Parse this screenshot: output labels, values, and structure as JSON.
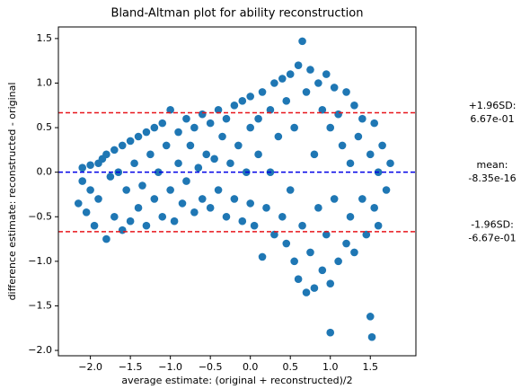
{
  "chart_data": {
    "type": "scatter",
    "title": "Bland-Altman plot for ability reconstruction",
    "xlabel": "average estimate: (original + reconstructed)/2",
    "ylabel": "difference estimate: reconstructed - original",
    "color": "#1f77b4",
    "xlim": [
      -2.4,
      2.07
    ],
    "ylim": [
      -2.06,
      1.63
    ],
    "xticks": [
      {
        "value": -2,
        "label": "−2.0"
      },
      {
        "value": -1.5,
        "label": "−1.5"
      },
      {
        "value": -1,
        "label": "−1.0"
      },
      {
        "value": -0.5,
        "label": "−0.5"
      },
      {
        "value": 0,
        "label": "0.0"
      },
      {
        "value": 0.5,
        "label": "0.5"
      },
      {
        "value": 1,
        "label": "1.0"
      },
      {
        "value": 1.5,
        "label": "1.5"
      }
    ],
    "yticks": [
      {
        "value": -2,
        "label": "−2.0"
      },
      {
        "value": -1.5,
        "label": "−1.5"
      },
      {
        "value": -1,
        "label": "−1.0"
      },
      {
        "value": -0.5,
        "label": "−0.5"
      },
      {
        "value": 0,
        "label": "0.0"
      },
      0.5,
      {
        "value": 1,
        "label": "1.0"
      },
      1.5
    ],
    "reference_lines": [
      {
        "value": 0.667,
        "color": "#e8161b",
        "label": [
          "+1.96SD:",
          "6.67e-01"
        ]
      },
      {
        "value": -8.35e-16,
        "color": "#0000e6",
        "label": [
          "mean:",
          "-8.35e-16"
        ]
      },
      {
        "value": -0.667,
        "color": "#e8161b",
        "label": [
          "-1.96SD:",
          "-6.67e-01"
        ]
      }
    ],
    "x": [
      -2.15,
      -2.1,
      -2.1,
      -2.05,
      -2.0,
      -2.0,
      -1.95,
      -1.9,
      -1.9,
      -1.85,
      -1.8,
      -1.8,
      -1.75,
      -1.7,
      -1.7,
      -1.65,
      -1.6,
      -1.6,
      -1.55,
      -1.5,
      -1.5,
      -1.45,
      -1.4,
      -1.4,
      -1.35,
      -1.3,
      -1.3,
      -1.25,
      -1.2,
      -1.2,
      -1.15,
      -1.1,
      -1.1,
      -1.05,
      -1.0,
      -1.0,
      -0.95,
      -0.9,
      -0.9,
      -0.85,
      -0.8,
      -0.8,
      -0.75,
      -0.7,
      -0.7,
      -0.65,
      -0.6,
      -0.6,
      -0.55,
      -0.5,
      -0.5,
      -0.45,
      -0.4,
      -0.4,
      -0.35,
      -0.3,
      -0.3,
      -0.25,
      -0.2,
      -0.2,
      -0.15,
      -0.1,
      -0.1,
      -0.05,
      0.0,
      0.0,
      0.0,
      0.05,
      0.1,
      0.1,
      0.15,
      0.15,
      0.2,
      0.25,
      0.25,
      0.3,
      0.3,
      0.35,
      0.4,
      0.4,
      0.45,
      0.45,
      0.5,
      0.5,
      0.55,
      0.55,
      0.6,
      0.6,
      0.65,
      0.65,
      0.7,
      0.7,
      0.75,
      0.75,
      0.8,
      0.8,
      0.85,
      0.85,
      0.9,
      0.9,
      0.95,
      0.95,
      1.0,
      1.0,
      1.0,
      1.05,
      1.05,
      1.1,
      1.1,
      1.15,
      1.2,
      1.2,
      1.25,
      1.25,
      1.3,
      1.3,
      1.35,
      1.4,
      1.4,
      1.45,
      1.5,
      1.5,
      1.52,
      1.55,
      1.55,
      1.6,
      1.6,
      1.65,
      1.7,
      1.75
    ],
    "values": [
      -0.35,
      -0.1,
      0.05,
      -0.45,
      -0.2,
      0.08,
      -0.6,
      0.1,
      -0.3,
      0.15,
      -0.75,
      0.2,
      -0.05,
      -0.5,
      0.25,
      0.0,
      -0.65,
      0.3,
      -0.2,
      0.35,
      -0.55,
      0.1,
      -0.4,
      0.4,
      -0.15,
      0.45,
      -0.6,
      0.2,
      -0.3,
      0.5,
      0.0,
      -0.5,
      0.55,
      0.3,
      -0.2,
      0.7,
      -0.55,
      0.45,
      0.1,
      -0.35,
      0.6,
      -0.1,
      0.3,
      -0.45,
      0.5,
      0.05,
      0.65,
      -0.3,
      0.2,
      0.55,
      -0.4,
      0.15,
      0.7,
      -0.2,
      0.4,
      -0.5,
      0.6,
      0.1,
      0.75,
      -0.3,
      0.3,
      -0.55,
      0.8,
      0.0,
      0.5,
      -0.35,
      0.85,
      -0.6,
      0.6,
      0.2,
      -0.95,
      0.9,
      -0.4,
      0.7,
      0.0,
      1.0,
      -0.7,
      0.4,
      1.05,
      -0.5,
      0.8,
      -0.8,
      1.1,
      -0.2,
      -1.0,
      0.5,
      1.2,
      -1.2,
      1.47,
      -0.6,
      0.9,
      -1.35,
      1.15,
      -0.9,
      0.2,
      -1.3,
      1.0,
      -0.4,
      -1.1,
      0.7,
      1.1,
      -0.7,
      -1.8,
      0.5,
      -1.25,
      0.95,
      -0.3,
      -1.0,
      0.65,
      0.3,
      0.9,
      -0.8,
      0.1,
      -0.5,
      0.75,
      -0.9,
      0.4,
      -0.3,
      0.6,
      -0.7,
      -1.62,
      0.2,
      -1.85,
      0.55,
      -0.4,
      0.0,
      -0.6,
      0.3,
      -0.2,
      0.1
    ]
  }
}
